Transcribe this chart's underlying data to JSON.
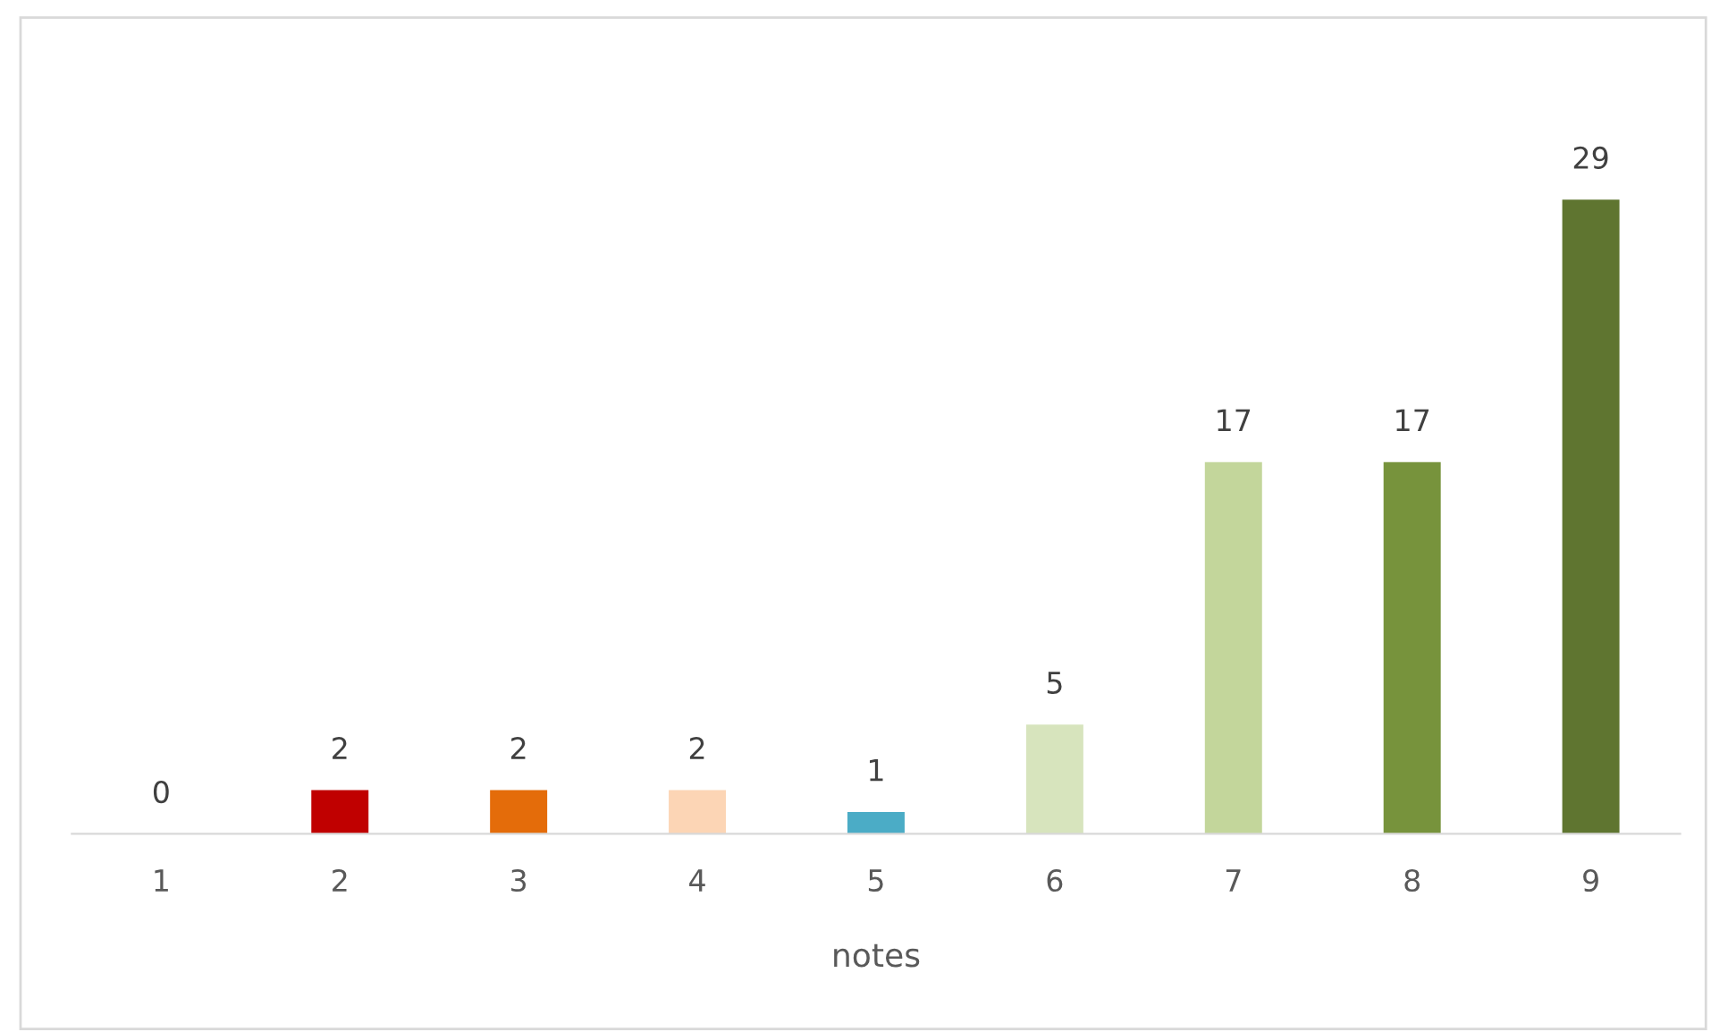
{
  "chart_data": {
    "type": "bar",
    "xlabel": "notes",
    "categories": [
      "1",
      "2",
      "3",
      "4",
      "5",
      "6",
      "7",
      "8",
      "9"
    ],
    "values": [
      0,
      2,
      2,
      2,
      1,
      5,
      17,
      17,
      29
    ],
    "colors": [
      "#4472c4",
      "#c00000",
      "#e46c0a",
      "#fcd5b5",
      "#4bacc6",
      "#d7e4bd",
      "#c3d69b",
      "#77933c",
      "#5f7530"
    ],
    "data_labels": true,
    "grid": false,
    "legend": false,
    "tick_labels": "x"
  }
}
